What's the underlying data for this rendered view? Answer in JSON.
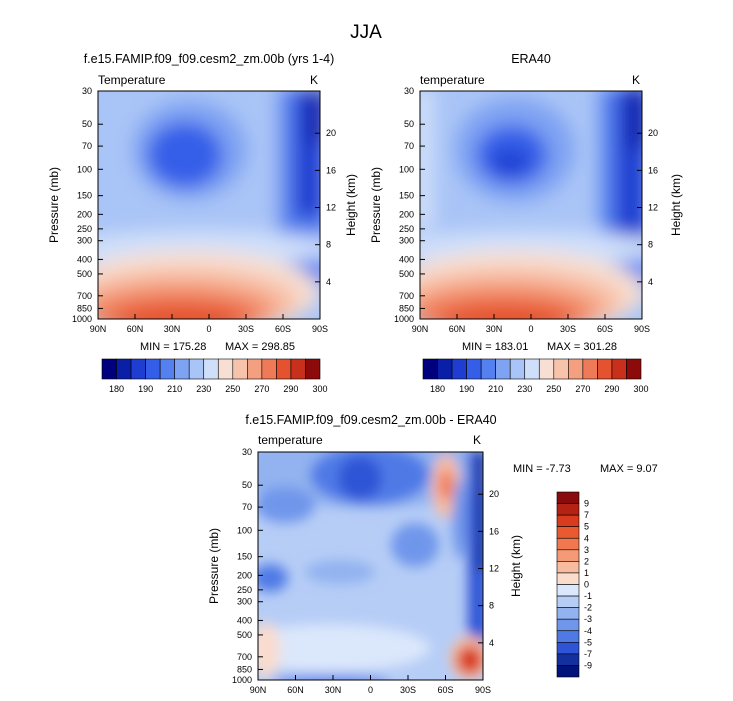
{
  "page_title": "JJA",
  "chart_data": [
    {
      "id": "left",
      "type": "heatmap",
      "title": "f.e15.FAMIP.f09_f09.cesm2_zm.00b (yrs 1-4)",
      "left_label": "Temperature",
      "units": "K",
      "ylabel": "Pressure (mb)",
      "y2label": "Height (km)",
      "xticks": [
        "90N",
        "60N",
        "30N",
        "0",
        "30S",
        "60S",
        "90S"
      ],
      "pressure_ticks": [
        "30",
        "50",
        "70",
        "100",
        "150",
        "200",
        "250",
        "300",
        "400",
        "500",
        "700",
        "850",
        "1000"
      ],
      "height_ticks": [
        "20",
        "16",
        "12",
        "8",
        "4"
      ],
      "min_label": "MIN = 175.28",
      "max_label": "MAX = 298.85",
      "min": 175.28,
      "max": 298.85,
      "colorbar_labels": [
        "180",
        "190",
        "210",
        "230",
        "250",
        "270",
        "290",
        "300"
      ]
    },
    {
      "id": "right",
      "type": "heatmap",
      "title": "ERA40",
      "left_label": "temperature",
      "units": "K",
      "ylabel": "Pressure (mb)",
      "y2label": "Height (km)",
      "xticks": [
        "90N",
        "60N",
        "30N",
        "0",
        "30S",
        "60S",
        "90S"
      ],
      "pressure_ticks": [
        "30",
        "50",
        "70",
        "100",
        "150",
        "200",
        "250",
        "300",
        "400",
        "500",
        "700",
        "850",
        "1000"
      ],
      "height_ticks": [
        "20",
        "16",
        "12",
        "8",
        "4"
      ],
      "min_label": "MIN = 183.01",
      "max_label": "MAX = 301.28",
      "min": 183.01,
      "max": 301.28,
      "colorbar_labels": [
        "180",
        "190",
        "210",
        "230",
        "250",
        "270",
        "290",
        "300"
      ]
    },
    {
      "id": "diff",
      "type": "heatmap",
      "title": "f.e15.FAMIP.f09_f09.cesm2_zm.00b - ERA40",
      "left_label": "temperature",
      "units": "K",
      "ylabel": "Pressure (mb)",
      "y2label": "Height (km)",
      "xticks": [
        "90N",
        "60N",
        "30N",
        "0",
        "30S",
        "60S",
        "90S"
      ],
      "pressure_ticks": [
        "30",
        "50",
        "70",
        "100",
        "150",
        "200",
        "250",
        "300",
        "400",
        "500",
        "700",
        "850",
        "1000"
      ],
      "height_ticks": [
        "20",
        "16",
        "12",
        "8",
        "4"
      ],
      "min_label": "MIN = -7.73",
      "max_label": "MAX = 9.07",
      "min": -7.73,
      "max": 9.07,
      "colorbar_labels": [
        "9",
        "7",
        "5",
        "4",
        "3",
        "2",
        "1",
        "0",
        "-1",
        "-2",
        "-3",
        "-4",
        "-5",
        "-7",
        "-9"
      ]
    }
  ],
  "colors": {
    "temp_scale": [
      "#00007f",
      "#0a1fa8",
      "#1f3dd0",
      "#345ee8",
      "#5580ef",
      "#7fa3f3",
      "#a9c4f6",
      "#cfdffa",
      "#f7e0d3",
      "#f8c3ab",
      "#f4a080",
      "#ef7a57",
      "#e5522f",
      "#c8301b",
      "#8c0a0a"
    ],
    "diff_scale": [
      "#8a0b0b",
      "#b52112",
      "#d83b1d",
      "#ea5a30",
      "#f1784e",
      "#f59a76",
      "#f8bba0",
      "#fadccd",
      "#dbe7fb",
      "#b6cdf6",
      "#92b2f0",
      "#6f96eb",
      "#4f7ae6",
      "#2f55d6",
      "#14309f",
      "#00137a"
    ]
  }
}
